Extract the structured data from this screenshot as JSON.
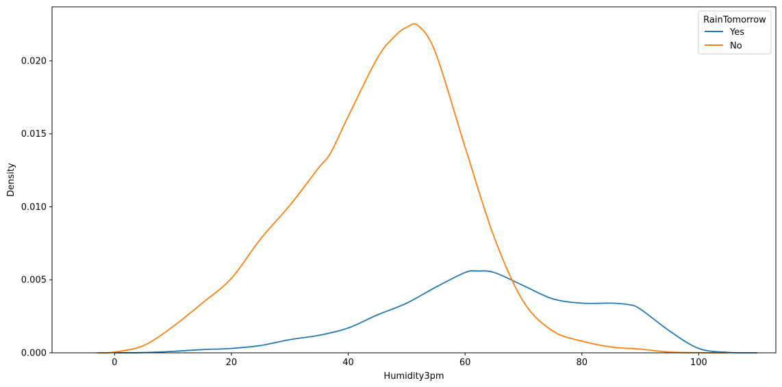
{
  "chart_data": {
    "type": "line",
    "title": "",
    "xlabel": "Humidity3pm",
    "ylabel": "Density",
    "xlim": [
      -10.7,
      113.2
    ],
    "ylim": [
      0.0,
      0.0237
    ],
    "xticks": [
      0,
      20,
      40,
      60,
      80,
      100
    ],
    "yticks": [
      0.0,
      0.005,
      0.01,
      0.015,
      0.02
    ],
    "xtick_labels": [
      "0",
      "20",
      "40",
      "60",
      "80",
      "100"
    ],
    "ytick_labels": [
      "0.000",
      "0.005",
      "0.010",
      "0.015",
      "0.020"
    ],
    "grid": false,
    "legend": {
      "title": "RainTomorrow",
      "position": "top-right"
    },
    "series": [
      {
        "name": "Yes",
        "color": "#1f77b4",
        "x": [
          0,
          5,
          10,
          15,
          20,
          25,
          30,
          35,
          40,
          45,
          50,
          55,
          60,
          62,
          65,
          70,
          75,
          80,
          85,
          88,
          90,
          95,
          100,
          105,
          110
        ],
        "y": [
          0.0,
          2e-05,
          0.0001,
          0.00022,
          0.0003,
          0.0005,
          0.0009,
          0.0012,
          0.0017,
          0.0026,
          0.0034,
          0.0045,
          0.0055,
          0.0056,
          0.0055,
          0.0046,
          0.0037,
          0.0034,
          0.0034,
          0.0033,
          0.003,
          0.0015,
          0.0003,
          3e-05,
          0.0
        ]
      },
      {
        "name": "No",
        "color": "#ff7f0e",
        "x": [
          -3,
          0,
          5,
          10,
          15,
          20,
          25,
          30,
          35,
          37,
          40,
          45,
          48,
          50,
          52,
          55,
          60,
          65,
          70,
          75,
          80,
          85,
          90,
          95,
          100,
          105
        ],
        "y": [
          0.0,
          5e-05,
          0.0005,
          0.0018,
          0.0034,
          0.0051,
          0.0078,
          0.0101,
          0.0127,
          0.0137,
          0.0162,
          0.0202,
          0.0217,
          0.0223,
          0.0224,
          0.0205,
          0.0141,
          0.0079,
          0.0035,
          0.0015,
          0.0008,
          0.0004,
          0.00025,
          5e-05,
          1e-05,
          0.0
        ]
      }
    ]
  }
}
